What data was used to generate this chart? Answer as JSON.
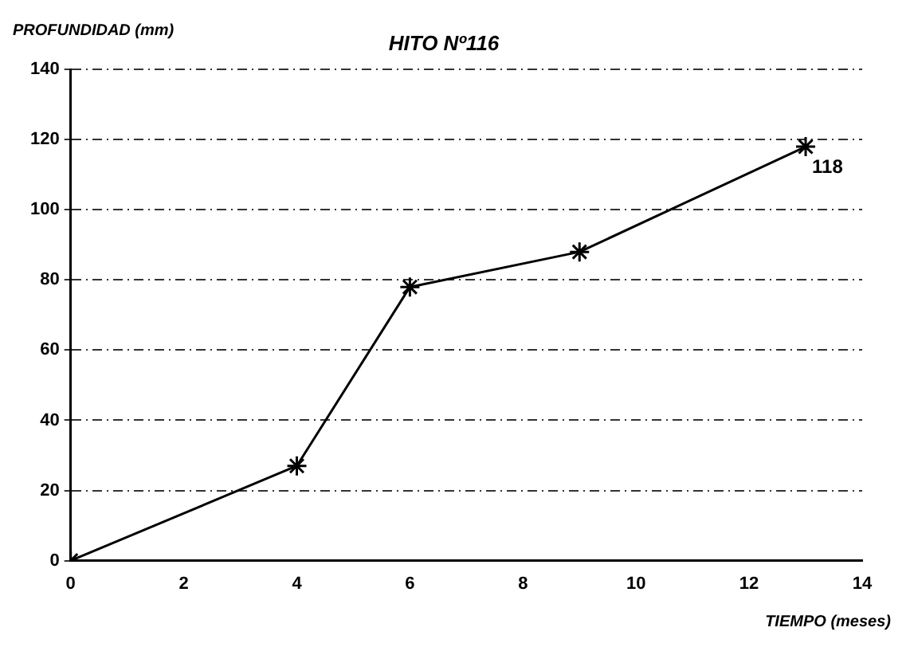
{
  "chart_data": {
    "type": "line",
    "title": "HITO Nº116",
    "xlabel": "TIEMPO (meses)",
    "ylabel": "PROFUNDIDAD (mm)",
    "x": [
      0,
      4,
      6,
      9,
      13
    ],
    "series": [
      {
        "color": "#000000",
        "values": [
          0,
          27,
          78,
          88,
          118
        ]
      }
    ],
    "annotations": [
      {
        "text": "118",
        "x": 13,
        "y": 118
      }
    ],
    "xlim": [
      0,
      14
    ],
    "xticks": [
      0,
      2,
      4,
      6,
      8,
      10,
      12,
      14
    ],
    "ylim": [
      0,
      140
    ],
    "yticks": [
      0,
      20,
      40,
      60,
      80,
      100,
      120,
      140
    ],
    "grid": "y",
    "legend": false,
    "marker": "cross",
    "line_style": "solid"
  }
}
